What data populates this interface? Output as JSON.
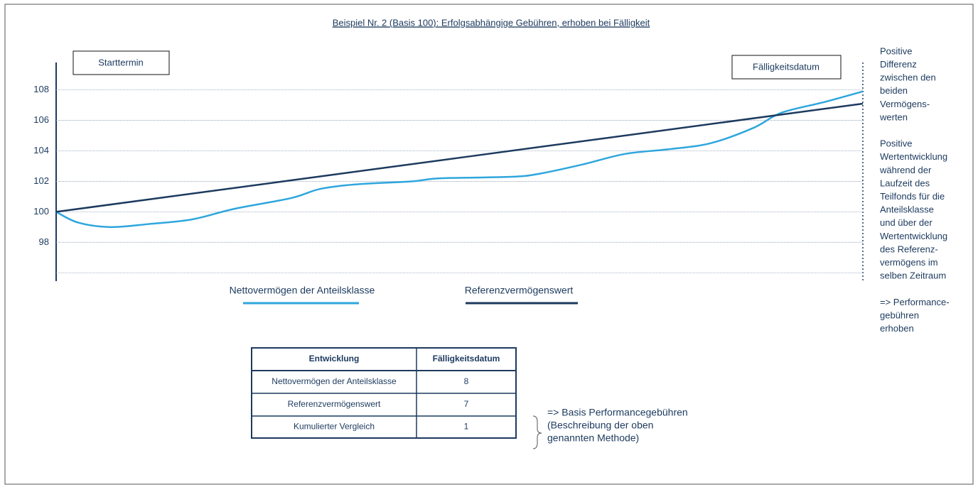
{
  "chart_data": {
    "type": "line",
    "title": "Beispiel Nr. 2 (Basis 100): Erfolgsabhängige Gebühren, erhoben bei Fälligkeit",
    "start_label": "Starttermin",
    "end_label": "Fälligkeitsdatum",
    "xlim": [
      0,
      100
    ],
    "ylim": [
      95.5,
      109.8
    ],
    "yticks": [
      98,
      100,
      102,
      104,
      106,
      108
    ],
    "grid_lines": [
      96,
      98,
      100,
      102,
      104,
      106,
      108
    ],
    "grid": true,
    "series": [
      {
        "name": "Nettovermögen der Anteilsklasse",
        "color": "#2ea6dd",
        "x": [
          0,
          2.7,
          6.7,
          11.5,
          16.8,
          22.1,
          29.1,
          32.7,
          37.1,
          44.1,
          47.6,
          56.4,
          59.9,
          65.2,
          70.5,
          75.8,
          81.1,
          86.4,
          89.9,
          95.2,
          100
        ],
        "values": [
          100,
          99.3,
          99.0,
          99.2,
          99.5,
          100.2,
          100.9,
          101.5,
          101.8,
          102.0,
          102.2,
          102.3,
          102.5,
          103.1,
          103.8,
          104.1,
          104.5,
          105.5,
          106.5,
          107.2,
          107.9
        ]
      },
      {
        "name": "Referenzvermögenswert",
        "color": "#1c3a5e",
        "x": [
          0,
          100
        ],
        "values": [
          100,
          107.1
        ]
      }
    ],
    "annotation_lines": [
      "Positive",
      "Differenz",
      "zwischen den",
      "beiden",
      "Vermögens-",
      "werten",
      "",
      "Positive",
      "Wertentwicklung",
      "während der",
      "Laufzeit des",
      "Teilfonds für die",
      "Anteilsklasse",
      "und über der",
      "Wertentwicklung",
      "des Referenz-",
      "vermögens im",
      "selben Zeitraum",
      "",
      "=> Performance-",
      "gebühren",
      "erhoben"
    ]
  },
  "table": {
    "header": [
      "Entwicklung",
      "Fälligkeitsdatum"
    ],
    "rows": [
      [
        "Nettovermögen der Anteilsklasse",
        8
      ],
      [
        "Referenzvermögenswert",
        7
      ],
      [
        "Kumulierter Vergleich",
        1
      ]
    ]
  },
  "note_lines": [
    "=> Basis Performancegebühren",
    "(Beschreibung der oben",
    "genannten Methode)"
  ]
}
